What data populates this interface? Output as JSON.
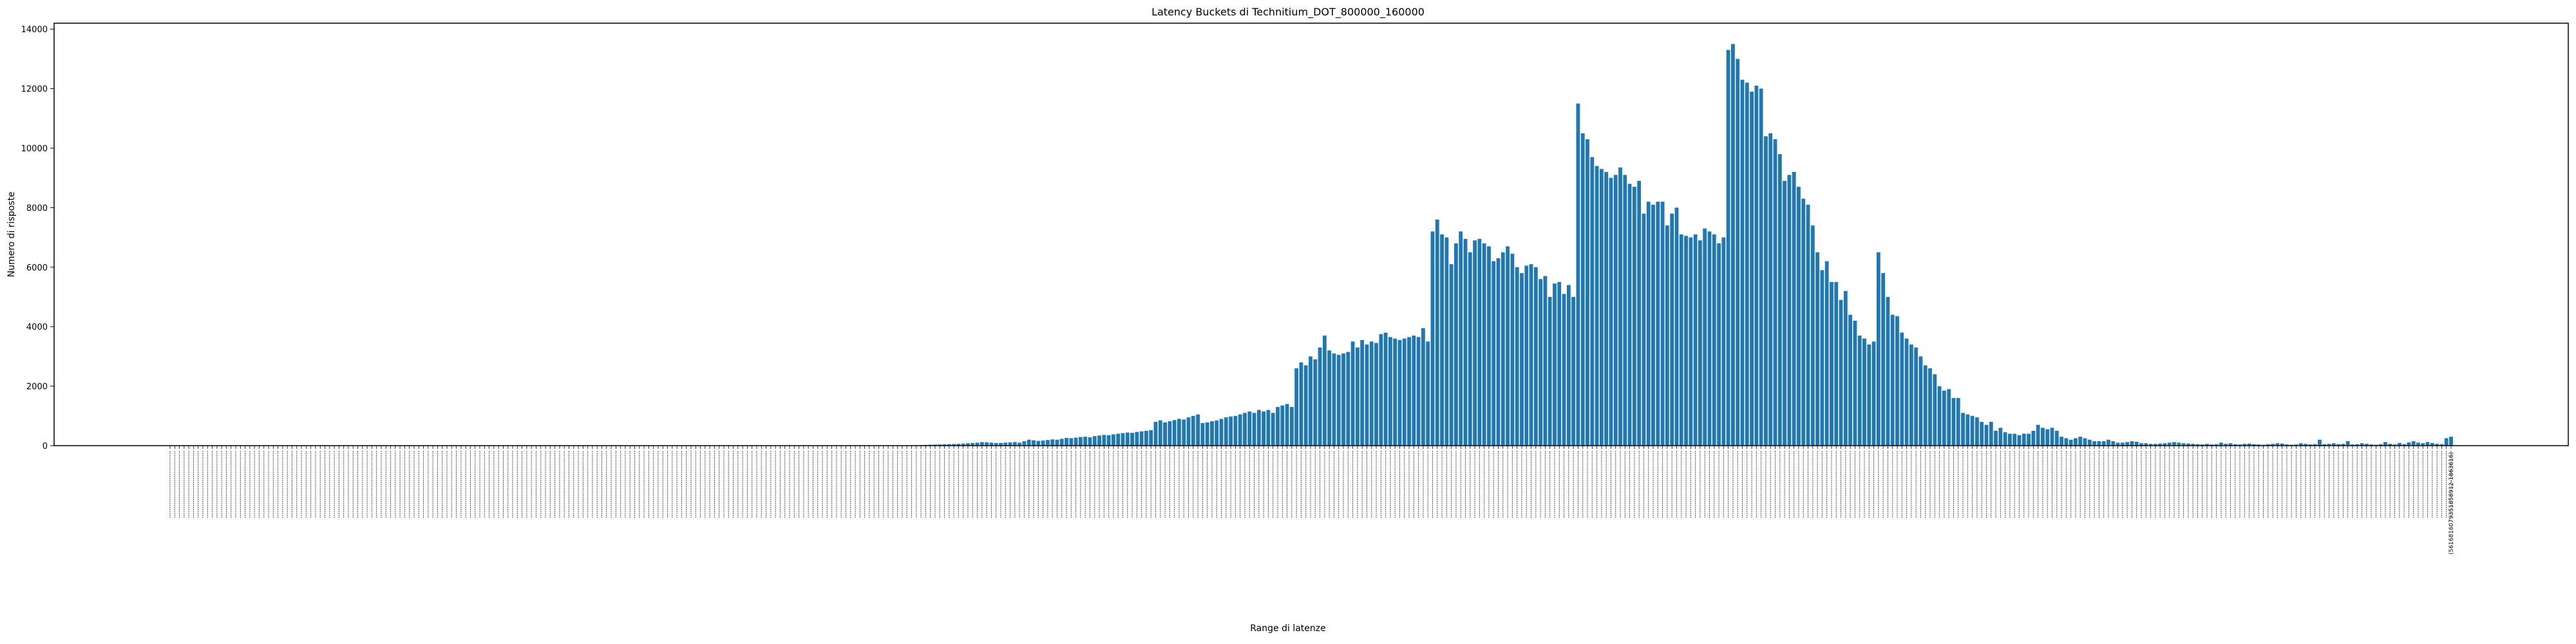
{
  "chart_data": {
    "type": "bar",
    "title": "Latency Buckets di Technitium_DOT_800000_160000",
    "xlabel": "Range di latenze",
    "ylabel": "Numero di risposte",
    "ylim": [
      0,
      14200
    ],
    "yticks": [
      0,
      2000,
      4000,
      6000,
      8000,
      10000,
      12000,
      14000
    ],
    "grid": false,
    "legend": "none",
    "bar_color": "#1f77b4",
    "last_category_label": "(5616816079351858912-1863616)",
    "values": [
      0,
      0,
      0,
      0,
      0,
      0,
      0,
      0,
      0,
      0,
      0,
      0,
      0,
      0,
      0,
      0,
      0,
      0,
      0,
      0,
      0,
      0,
      0,
      0,
      0,
      0,
      0,
      0,
      0,
      0,
      0,
      0,
      0,
      0,
      0,
      0,
      0,
      0,
      0,
      0,
      0,
      0,
      0,
      0,
      0,
      0,
      0,
      0,
      0,
      0,
      0,
      0,
      0,
      0,
      0,
      0,
      0,
      0,
      0,
      0,
      0,
      0,
      0,
      0,
      0,
      0,
      0,
      0,
      0,
      0,
      0,
      0,
      0,
      0,
      0,
      0,
      0,
      0,
      0,
      0,
      0,
      0,
      0,
      0,
      0,
      0,
      0,
      0,
      0,
      0,
      0,
      0,
      0,
      0,
      0,
      0,
      0,
      0,
      0,
      0,
      0,
      0,
      0,
      0,
      0,
      0,
      0,
      0,
      0,
      0,
      0,
      0,
      0,
      0,
      0,
      0,
      0,
      0,
      0,
      0,
      0,
      0,
      0,
      0,
      0,
      0,
      0,
      0,
      0,
      0,
      0,
      0,
      0,
      0,
      0,
      0,
      0,
      0,
      0,
      0,
      0,
      0,
      0,
      0,
      0,
      0,
      0,
      0,
      0,
      0,
      0,
      0,
      0,
      0,
      0,
      0,
      0,
      0,
      10,
      15,
      20,
      25,
      30,
      35,
      40,
      45,
      50,
      55,
      60,
      70,
      80,
      90,
      100,
      120,
      110,
      100,
      90,
      90,
      100,
      110,
      120,
      100,
      150,
      200,
      180,
      160,
      170,
      190,
      210,
      200,
      230,
      260,
      250,
      270,
      290,
      300,
      280,
      320,
      340,
      360,
      350,
      380,
      400,
      420,
      440,
      430,
      460,
      480,
      500,
      520,
      800,
      850,
      780,
      820,
      860,
      900,
      880,
      950,
      1000,
      1050,
      760,
      780,
      820,
      850,
      900,
      950,
      980,
      1000,
      1050,
      1100,
      1150,
      1100,
      1200,
      1150,
      1200,
      1100,
      1300,
      1350,
      1400,
      1300,
      2600,
      2800,
      2700,
      3000,
      2900,
      3300,
      3700,
      3200,
      3100,
      3050,
      3100,
      3150,
      3500,
      3300,
      3550,
      3400,
      3500,
      3450,
      3750,
      3800,
      3650,
      3600,
      3550,
      3600,
      3650,
      3700,
      3650,
      3950,
      3500,
      7200,
      7600,
      7100,
      7000,
      6100,
      6800,
      7200,
      6950,
      6500,
      6900,
      6950,
      6800,
      6700,
      6200,
      6300,
      6500,
      6700,
      6450,
      6000,
      5800,
      6050,
      6100,
      6000,
      5600,
      5700,
      5000,
      5450,
      5500,
      5100,
      5400,
      5000,
      11500,
      10500,
      10300,
      9700,
      9400,
      9300,
      9200,
      9000,
      9100,
      9350,
      9100,
      8800,
      8700,
      8900,
      7800,
      8200,
      8100,
      8200,
      8200,
      7400,
      7800,
      8000,
      7100,
      7050,
      7000,
      7100,
      6900,
      7300,
      7200,
      7100,
      6800,
      7000,
      13300,
      13500,
      13000,
      12300,
      12200,
      11900,
      12100,
      12000,
      10400,
      10500,
      10300,
      9800,
      8900,
      9100,
      9200,
      8700,
      8300,
      8100,
      7400,
      6500,
      5900,
      6200,
      5500,
      5500,
      4900,
      5200,
      4400,
      4200,
      3700,
      3600,
      3400,
      3500,
      6500,
      5800,
      5000,
      4400,
      4350,
      3800,
      3600,
      3400,
      3300,
      3000,
      2700,
      2600,
      2400,
      2000,
      1850,
      1900,
      1600,
      1600,
      1100,
      1050,
      1000,
      950,
      800,
      700,
      800,
      500,
      600,
      450,
      400,
      400,
      350,
      400,
      400,
      500,
      700,
      600,
      550,
      600,
      500,
      300,
      250,
      200,
      250,
      300,
      250,
      200,
      150,
      150,
      150,
      200,
      150,
      100,
      100,
      120,
      150,
      130,
      80,
      80,
      60,
      60,
      70,
      80,
      100,
      120,
      100,
      80,
      70,
      60,
      50,
      40,
      60,
      40,
      50,
      100,
      60,
      80,
      50,
      40,
      60,
      70,
      50,
      40,
      30,
      50,
      60,
      80,
      70,
      40,
      30,
      40,
      80,
      60,
      40,
      50,
      200,
      50,
      60,
      80,
      50,
      60,
      150,
      40,
      50,
      80,
      60,
      40,
      30,
      50,
      120,
      60,
      40,
      90,
      50,
      110,
      150,
      100,
      80,
      120,
      90,
      60,
      50,
      250,
      300
    ]
  }
}
